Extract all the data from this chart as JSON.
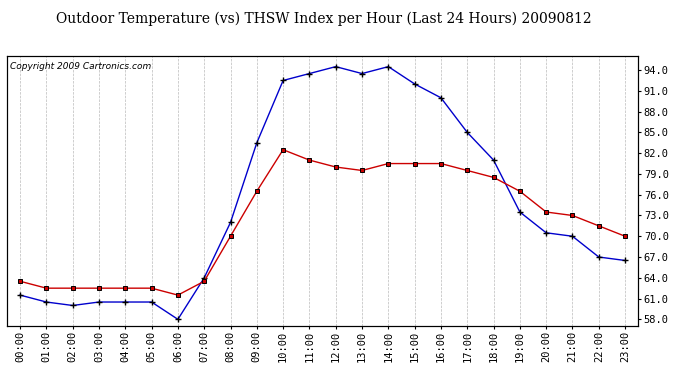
{
  "title": "Outdoor Temperature (vs) THSW Index per Hour (Last 24 Hours) 20090812",
  "copyright": "Copyright 2009 Cartronics.com",
  "hours": [
    "00:00",
    "01:00",
    "02:00",
    "03:00",
    "04:00",
    "05:00",
    "06:00",
    "07:00",
    "08:00",
    "09:00",
    "10:00",
    "11:00",
    "12:00",
    "13:00",
    "14:00",
    "15:00",
    "16:00",
    "17:00",
    "18:00",
    "19:00",
    "20:00",
    "21:00",
    "22:00",
    "23:00"
  ],
  "blue_thsw": [
    61.5,
    60.5,
    60.0,
    60.5,
    60.5,
    60.5,
    58.0,
    64.0,
    72.0,
    83.5,
    92.5,
    93.5,
    94.5,
    93.5,
    94.5,
    92.0,
    90.0,
    85.0,
    81.0,
    73.5,
    70.5,
    70.0,
    67.0,
    66.5
  ],
  "red_temp": [
    63.5,
    62.5,
    62.5,
    62.5,
    62.5,
    62.5,
    61.5,
    63.5,
    70.0,
    76.5,
    82.5,
    81.0,
    80.0,
    79.5,
    80.5,
    80.5,
    80.5,
    79.5,
    78.5,
    76.5,
    73.5,
    73.0,
    71.5,
    70.0
  ],
  "ylim": [
    57.0,
    96.0
  ],
  "yticks": [
    58.0,
    61.0,
    64.0,
    67.0,
    70.0,
    73.0,
    76.0,
    79.0,
    82.0,
    85.0,
    88.0,
    91.0,
    94.0
  ],
  "blue_color": "#0000cc",
  "red_color": "#cc0000",
  "background_color": "#ffffff",
  "grid_color": "#bbbbbb",
  "title_fontsize": 10,
  "copyright_fontsize": 6.5,
  "tick_fontsize": 7.5
}
